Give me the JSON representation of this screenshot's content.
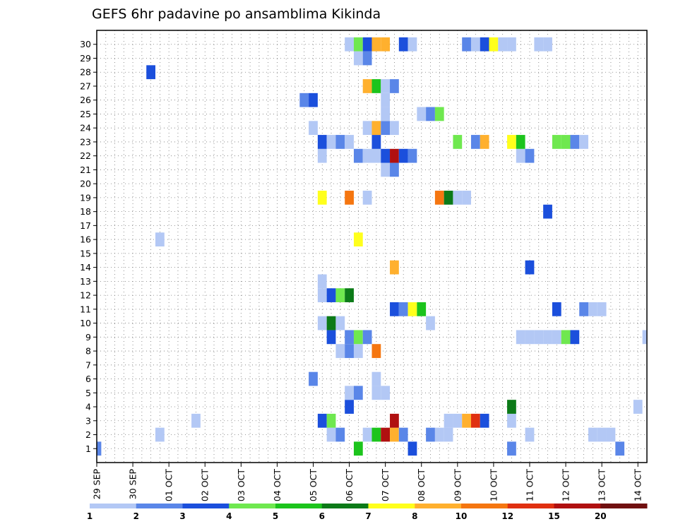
{
  "chart_data": {
    "type": "heatmap",
    "title": "GEFS 6hr padavine po ansamblima Kikinda",
    "xlabel": "",
    "ylabel": "",
    "x_tick_labels": [
      "29 SEP",
      "30 SEP",
      "01 OCT",
      "02 OCT",
      "03 OCT",
      "04 OCT",
      "05 OCT",
      "06 OCT",
      "07 OCT",
      "08 OCT",
      "09 OCT",
      "10 OCT",
      "11 OCT",
      "12 OCT",
      "13 OCT",
      "14 OCT"
    ],
    "y_tick_labels": [
      1,
      2,
      3,
      4,
      5,
      6,
      7,
      8,
      9,
      10,
      11,
      12,
      13,
      14,
      15,
      16,
      17,
      18,
      19,
      20,
      21,
      22,
      23,
      24,
      25,
      26,
      27,
      28,
      29,
      30
    ],
    "x_range_steps": [
      0,
      61
    ],
    "step_hours": 6,
    "grid": true,
    "colorbar": {
      "boundaries": [
        "1",
        "2",
        "3",
        "4",
        "5",
        "6",
        "7",
        "8",
        "10",
        "12",
        "15",
        "20"
      ],
      "colors": [
        "#b3c8f5",
        "#5a86e8",
        "#1b4fdc",
        "#6fe84f",
        "#1cc41c",
        "#0c7a18",
        "#ffff1c",
        "#ffb02e",
        "#f57610",
        "#e03010",
        "#b01010",
        "#701010"
      ]
    },
    "cells": [
      [
        1,
        0,
        2
      ],
      [
        1,
        29,
        5
      ],
      [
        1,
        35,
        3
      ],
      [
        1,
        46,
        2
      ],
      [
        1,
        58,
        2
      ],
      [
        2,
        7,
        1
      ],
      [
        2,
        26,
        1
      ],
      [
        2,
        27,
        2
      ],
      [
        2,
        30,
        1
      ],
      [
        2,
        31,
        5
      ],
      [
        2,
        32,
        11
      ],
      [
        2,
        33,
        8
      ],
      [
        2,
        34,
        2
      ],
      [
        2,
        37,
        2
      ],
      [
        2,
        38,
        1
      ],
      [
        2,
        39,
        1
      ],
      [
        2,
        48,
        1
      ],
      [
        2,
        55,
        1
      ],
      [
        2,
        56,
        1
      ],
      [
        2,
        57,
        1
      ],
      [
        3,
        11,
        1
      ],
      [
        3,
        25,
        3
      ],
      [
        3,
        26,
        4
      ],
      [
        3,
        33,
        11
      ],
      [
        3,
        39,
        1
      ],
      [
        3,
        40,
        1
      ],
      [
        3,
        41,
        8
      ],
      [
        3,
        42,
        10
      ],
      [
        3,
        43,
        3
      ],
      [
        3,
        46,
        1
      ],
      [
        4,
        28,
        3
      ],
      [
        4,
        46,
        6
      ],
      [
        4,
        60,
        1
      ],
      [
        5,
        28,
        1
      ],
      [
        5,
        29,
        2
      ],
      [
        5,
        31,
        1
      ],
      [
        5,
        32,
        1
      ],
      [
        6,
        24,
        2
      ],
      [
        6,
        31,
        1
      ],
      [
        8,
        27,
        1
      ],
      [
        8,
        28,
        2
      ],
      [
        8,
        29,
        1
      ],
      [
        8,
        31,
        9
      ],
      [
        9,
        26,
        3
      ],
      [
        9,
        28,
        2
      ],
      [
        9,
        29,
        4
      ],
      [
        9,
        30,
        2
      ],
      [
        9,
        47,
        1
      ],
      [
        9,
        48,
        1
      ],
      [
        9,
        49,
        1
      ],
      [
        9,
        50,
        1
      ],
      [
        9,
        51,
        1
      ],
      [
        9,
        52,
        4
      ],
      [
        9,
        53,
        3
      ],
      [
        9,
        61,
        1
      ],
      [
        10,
        25,
        1
      ],
      [
        10,
        26,
        6
      ],
      [
        10,
        27,
        1
      ],
      [
        10,
        37,
        1
      ],
      [
        11,
        33,
        3
      ],
      [
        11,
        34,
        2
      ],
      [
        11,
        35,
        7
      ],
      [
        11,
        36,
        5
      ],
      [
        11,
        51,
        3
      ],
      [
        11,
        54,
        2
      ],
      [
        11,
        55,
        1
      ],
      [
        11,
        56,
        1
      ],
      [
        12,
        25,
        1
      ],
      [
        12,
        26,
        3
      ],
      [
        12,
        27,
        4
      ],
      [
        12,
        28,
        6
      ],
      [
        13,
        25,
        1
      ],
      [
        14,
        33,
        8
      ],
      [
        14,
        48,
        3
      ],
      [
        16,
        7,
        1
      ],
      [
        16,
        29,
        7
      ],
      [
        18,
        50,
        3
      ],
      [
        19,
        25,
        7
      ],
      [
        19,
        28,
        9
      ],
      [
        19,
        30,
        1
      ],
      [
        19,
        38,
        9
      ],
      [
        19,
        39,
        6
      ],
      [
        19,
        40,
        1
      ],
      [
        19,
        41,
        1
      ],
      [
        21,
        32,
        1
      ],
      [
        21,
        33,
        2
      ],
      [
        22,
        25,
        1
      ],
      [
        22,
        29,
        2
      ],
      [
        22,
        30,
        1
      ],
      [
        22,
        31,
        1
      ],
      [
        22,
        32,
        3
      ],
      [
        22,
        33,
        11
      ],
      [
        22,
        34,
        3
      ],
      [
        22,
        35,
        2
      ],
      [
        22,
        47,
        1
      ],
      [
        22,
        48,
        2
      ],
      [
        23,
        25,
        3
      ],
      [
        23,
        26,
        1
      ],
      [
        23,
        27,
        2
      ],
      [
        23,
        28,
        1
      ],
      [
        23,
        31,
        3
      ],
      [
        23,
        40,
        4
      ],
      [
        23,
        42,
        2
      ],
      [
        23,
        43,
        8
      ],
      [
        23,
        46,
        7
      ],
      [
        23,
        47,
        5
      ],
      [
        23,
        51,
        4
      ],
      [
        23,
        52,
        4
      ],
      [
        23,
        53,
        2
      ],
      [
        23,
        54,
        1
      ],
      [
        24,
        24,
        1
      ],
      [
        24,
        30,
        1
      ],
      [
        24,
        31,
        8
      ],
      [
        24,
        32,
        2
      ],
      [
        24,
        33,
        1
      ],
      [
        25,
        32,
        1
      ],
      [
        25,
        36,
        1
      ],
      [
        25,
        37,
        2
      ],
      [
        25,
        38,
        4
      ],
      [
        26,
        23,
        2
      ],
      [
        26,
        24,
        3
      ],
      [
        26,
        32,
        1
      ],
      [
        27,
        30,
        8
      ],
      [
        27,
        31,
        5
      ],
      [
        27,
        32,
        1
      ],
      [
        27,
        33,
        2
      ],
      [
        28,
        6,
        3
      ],
      [
        29,
        29,
        1
      ],
      [
        29,
        30,
        2
      ],
      [
        30,
        28,
        1
      ],
      [
        30,
        29,
        4
      ],
      [
        30,
        30,
        3
      ],
      [
        30,
        31,
        8
      ],
      [
        30,
        32,
        8
      ],
      [
        30,
        34,
        3
      ],
      [
        30,
        35,
        1
      ],
      [
        30,
        41,
        2
      ],
      [
        30,
        42,
        1
      ],
      [
        30,
        43,
        3
      ],
      [
        30,
        44,
        7
      ],
      [
        30,
        45,
        1
      ],
      [
        30,
        46,
        1
      ],
      [
        30,
        49,
        1
      ],
      [
        30,
        50,
        1
      ]
    ]
  }
}
